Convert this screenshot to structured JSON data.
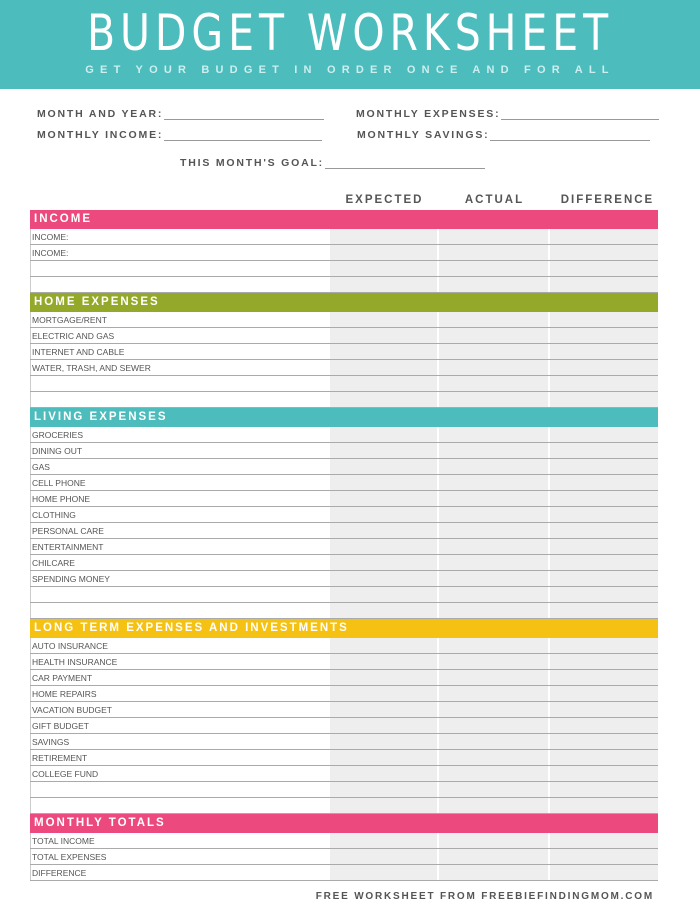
{
  "header": {
    "title": "BUDGET WORKSHEET",
    "subtitle": "GET YOUR BUDGET IN ORDER ONCE AND FOR ALL"
  },
  "fields": {
    "month_year": "MONTH AND YEAR:",
    "monthly_expenses": "MONTHLY EXPENSES:",
    "monthly_income": "MONTHLY INCOME:",
    "monthly_savings": "MONTHLY SAVINGS:",
    "goal": "THIS MONTH'S GOAL:"
  },
  "columns": [
    "EXPECTED",
    "ACTUAL",
    "DIFFERENCE"
  ],
  "colors": {
    "banner": "#4dbcbd",
    "income": "#ec4a7e",
    "home": "#94a82a",
    "living": "#4dbcbd",
    "longterm": "#f5c112",
    "totals": "#ec4a7e"
  },
  "sections": [
    {
      "title": "INCOME",
      "color": "#ec4a7e",
      "rows": [
        "INCOME:",
        "INCOME:",
        "",
        ""
      ]
    },
    {
      "title": "HOME EXPENSES",
      "color": "#94a82a",
      "rows": [
        "MORTGAGE/RENT",
        "ELECTRIC AND GAS",
        "INTERNET AND CABLE",
        "WATER, TRASH, AND SEWER",
        "",
        ""
      ]
    },
    {
      "title": "LIVING EXPENSES",
      "color": "#4dbcbd",
      "rows": [
        "GROCERIES",
        "DINING OUT",
        "GAS",
        "CELL PHONE",
        "HOME PHONE",
        "CLOTHING",
        "PERSONAL CARE",
        "ENTERTAINMENT",
        "CHILCARE",
        "SPENDING MONEY",
        "",
        ""
      ]
    },
    {
      "title": "LONG TERM EXPENSES AND INVESTMENTS",
      "color": "#f5c112",
      "rows": [
        "AUTO INSURANCE",
        "HEALTH INSURANCE",
        "CAR PAYMENT",
        "HOME REPAIRS",
        "VACATION BUDGET",
        "GIFT BUDGET",
        "SAVINGS",
        "RETIREMENT",
        "COLLEGE FUND",
        "",
        ""
      ]
    },
    {
      "title": "MONTHLY TOTALS",
      "color": "#ec4a7e",
      "rows": [
        "TOTAL INCOME",
        "TOTAL EXPENSES",
        "DIFFERENCE"
      ]
    }
  ],
  "footer": "FREE WORKSHEET FROM FREEBIEFINDINGMOM.COM"
}
